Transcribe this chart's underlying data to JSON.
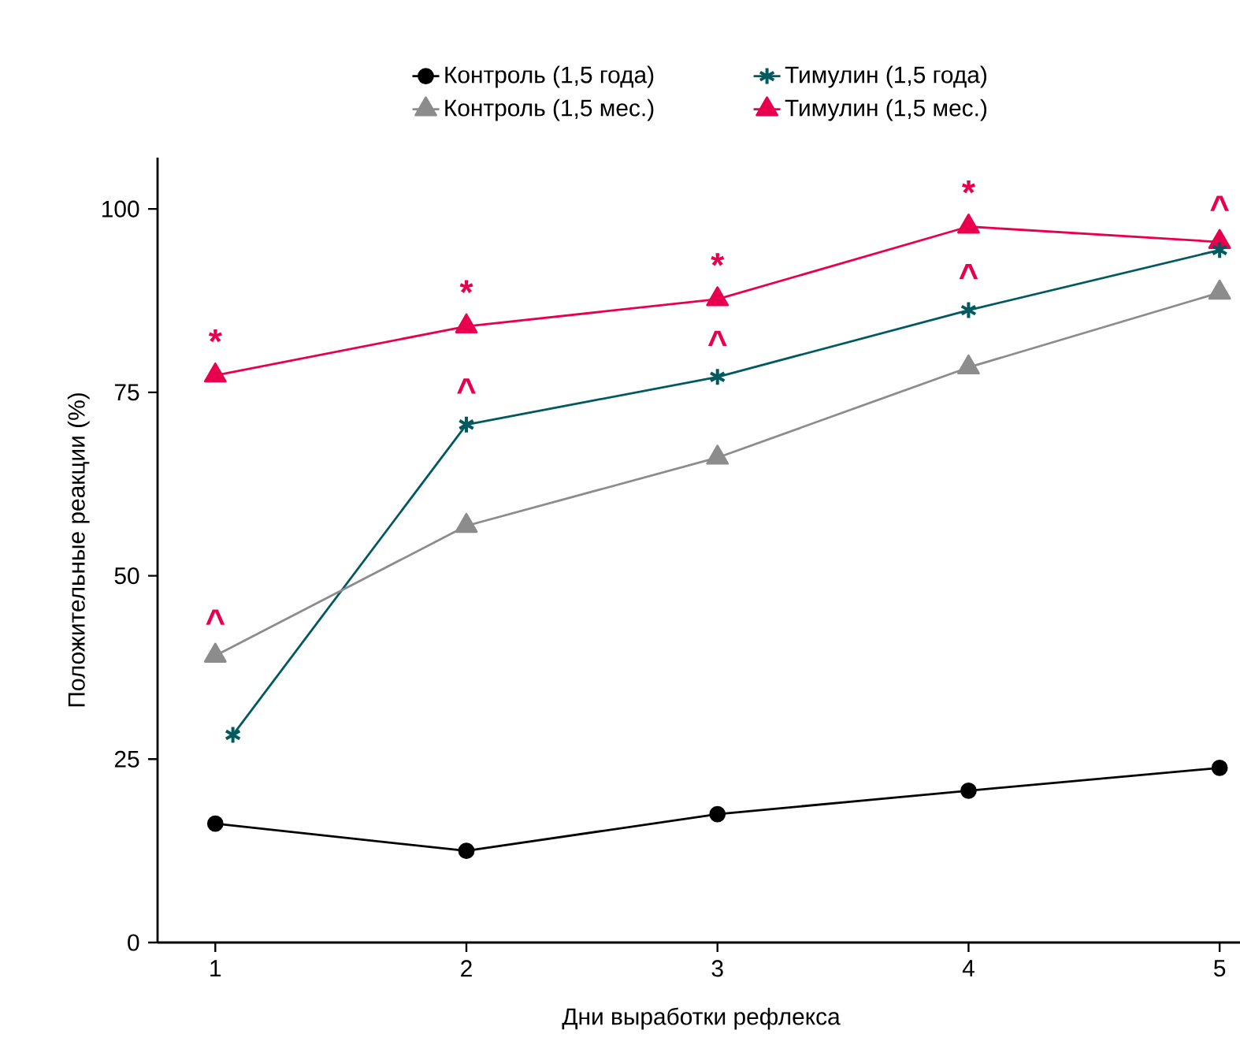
{
  "chart_data": {
    "type": "line",
    "xlabel": "Дни выработки рефлекса",
    "ylabel": "Положительные реакции (%)",
    "x": [
      1,
      2,
      3,
      4,
      5
    ],
    "xlim": [
      0.77,
      5.1
    ],
    "ylim": [
      0,
      107
    ],
    "xticks": [
      1,
      2,
      3,
      4,
      5
    ],
    "yticks": [
      0,
      25,
      50,
      75,
      100
    ],
    "legend": "top",
    "series": [
      {
        "name": "Контроль (1,5 года)",
        "color": "#000000",
        "marker": "circle",
        "values": [
          16.2,
          12.5,
          17.5,
          20.7,
          23.8
        ]
      },
      {
        "name": "Контроль (1,5 мес.)",
        "color": "#8c8c8c",
        "marker": "triangle",
        "values": [
          39.1,
          56.8,
          66.1,
          78.4,
          88.6
        ]
      },
      {
        "name": "Тимулин (1,5 года)",
        "color": "#005a5f",
        "marker": "cross",
        "x": [
          1.07,
          2,
          3,
          4,
          5
        ],
        "values": [
          28.3,
          70.6,
          77.1,
          86.2,
          94.4
        ]
      },
      {
        "name": "Тимулин (1,5 мес.)",
        "color": "#e8004f",
        "marker": "triangle",
        "values": [
          77.3,
          84.0,
          87.7,
          97.6,
          95.5
        ]
      }
    ],
    "annotations": [
      {
        "text": "*",
        "x": 1,
        "y": 77.3
      },
      {
        "text": "*",
        "x": 2,
        "y": 84.0
      },
      {
        "text": "*",
        "x": 3,
        "y": 87.7
      },
      {
        "text": "*",
        "x": 4,
        "y": 97.6
      },
      {
        "text": "^",
        "x": 1,
        "y": 39.1
      },
      {
        "text": "^",
        "x": 2,
        "y": 70.6
      },
      {
        "text": "^",
        "x": 3,
        "y": 77.1
      },
      {
        "text": "^",
        "x": 4,
        "y": 86.2
      },
      {
        "text": "^",
        "x": 5,
        "y": 95.5
      }
    ]
  }
}
